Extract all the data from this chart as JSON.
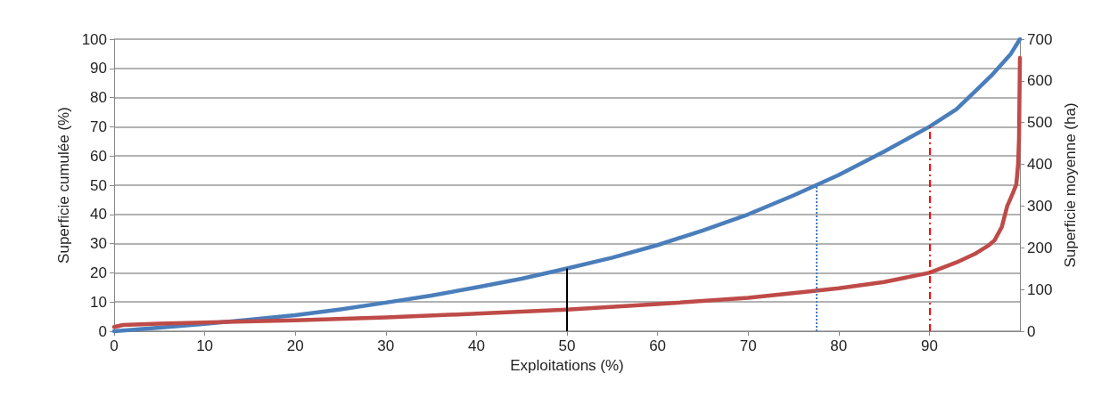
{
  "chart_data": {
    "type": "line",
    "xlabel": "Exploitations (%)",
    "ylabel": "Superficie cumulée (%)",
    "y2label": "Superficie moyenne (ha)",
    "series": [
      {
        "color": "#4a7ebb",
        "x": [
          0,
          5,
          10,
          15,
          20,
          25,
          30,
          35,
          40,
          45,
          50,
          55,
          60,
          65,
          70,
          75,
          77.5,
          80,
          85,
          90,
          93,
          95,
          97,
          99,
          100
        ],
        "values": [
          0,
          1.2,
          2.5,
          4,
          5.5,
          7.5,
          9.8,
          12.2,
          15,
          18,
          21.5,
          25.2,
          29.5,
          34.5,
          40,
          46.5,
          50,
          53.5,
          61.5,
          70,
          76,
          82,
          88,
          95,
          100
        ]
      },
      {
        "color": "#be4b48",
        "axis": "y2",
        "x": [
          0,
          1,
          5,
          10,
          20,
          30,
          40,
          50,
          60,
          70,
          77.5,
          80,
          85,
          90,
          93,
          95,
          96.5,
          97.2,
          98,
          98.6,
          99.2,
          99.6,
          99.8,
          99.9,
          100
        ],
        "values": [
          10,
          15,
          18,
          21,
          26,
          33,
          42,
          52,
          65,
          80,
          97,
          103,
          118,
          140,
          165,
          185,
          205,
          218,
          250,
          300,
          330,
          352,
          400,
          462,
          655
        ]
      }
    ],
    "ref_lines": [
      {
        "axis": "x",
        "value": 50,
        "color": "#000000",
        "line_style": "solid"
      },
      {
        "axis": "x",
        "value": 77.5,
        "color": "#4a7ebb",
        "line_style": "dotted"
      },
      {
        "axis": "x",
        "value": 90,
        "color": "#ff0000",
        "line_style": "dashed"
      }
    ],
    "xlim": [
      0,
      100
    ],
    "xticks": [
      0,
      10,
      20,
      30,
      40,
      50,
      60,
      70,
      80,
      90
    ],
    "ylim": [
      0,
      100
    ],
    "yticks": [
      0,
      10,
      20,
      30,
      40,
      50,
      60,
      70,
      80,
      90,
      100
    ],
    "y2lim": [
      0,
      700
    ],
    "y2ticks": [
      0,
      100,
      200,
      300,
      400,
      500,
      600,
      700
    ],
    "grid": "y",
    "marker": "none",
    "line_style": "solid"
  }
}
